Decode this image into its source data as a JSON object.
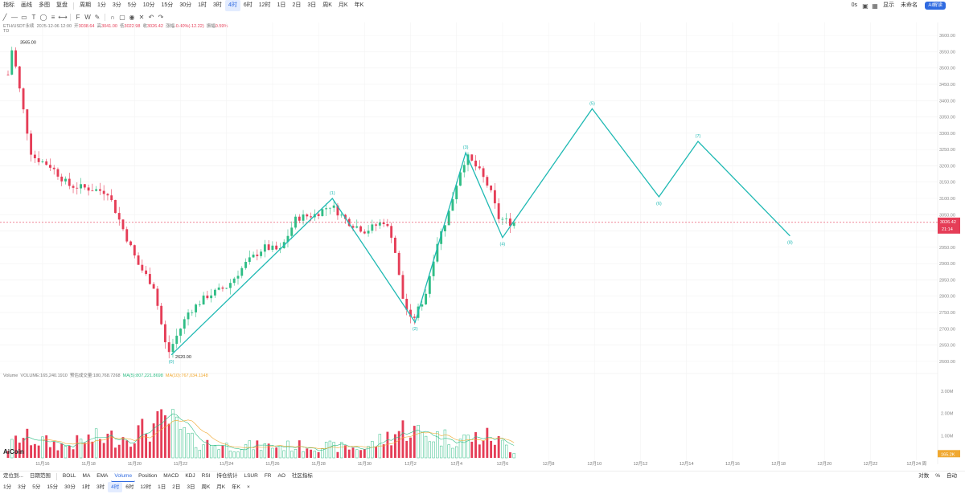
{
  "toolbar_top": {
    "left": [
      "指标",
      "画线",
      "多图",
      "复盘",
      "周期"
    ],
    "periods": [
      "1分",
      "3分",
      "5分",
      "10分",
      "15分",
      "30分",
      "1时",
      "3时",
      "4时",
      "6时",
      "12时",
      "1日",
      "2日",
      "3日",
      "周K",
      "月K",
      "年K"
    ],
    "active_period": "4时",
    "right": [
      "0s",
      "显示",
      "未命名"
    ],
    "ai_label": "AI解读"
  },
  "info_line": {
    "symbol": "ETH/USDT永续",
    "datetime": "2025-12-06 12:00",
    "open_label": "开",
    "open": "3038.64",
    "high_label": "高",
    "high": "3041.00",
    "low_label": "低",
    "low": "3022.98",
    "close_label": "收",
    "close": "3026.42",
    "change_label": "涨幅",
    "change": "-0.40%(-12.22)",
    "amp_label": "振幅",
    "amp": "0.59%",
    "tag": "TD"
  },
  "volume_info": {
    "label": "Volume",
    "volume": "VOLUME:165,240.1910",
    "est": "预估成交量:180,768.7268",
    "ma5": "MA(5):807,221.8698",
    "ma10": "MA(10):767,034.1148"
  },
  "bottom_tabs": {
    "left": [
      "定位到...",
      "日期范围"
    ],
    "indicators": [
      "BOLL",
      "MA",
      "EMA",
      "Volume",
      "Position",
      "MACD",
      "KDJ",
      "RSI",
      "持仓统计",
      "LSUR",
      "FR",
      "AO",
      "社区指标"
    ],
    "active": "Volume",
    "right": [
      "对数",
      "%",
      "自动"
    ]
  },
  "bottom_periods": [
    "1分",
    "3分",
    "5分",
    "15分",
    "30分",
    "1时",
    "3时",
    "4时",
    "6时",
    "12时",
    "1日",
    "2日",
    "3日",
    "周K",
    "月K",
    "年K"
  ],
  "logo": "AiCoin",
  "colors": {
    "up": "#2fbd85",
    "down": "#e53d57",
    "wave": "#1fb9b3",
    "ma5": "#2fbd85",
    "ma10": "#f0a830",
    "price_line": "#e53d57"
  },
  "chart_data": {
    "type": "candlestick",
    "y_ticks": [
      3600,
      3550,
      3500,
      3450,
      3400,
      3350,
      3300,
      3250,
      3200,
      3150,
      3100,
      3050,
      3000,
      2950,
      2900,
      2850,
      2800,
      2750,
      2700,
      2650,
      2600
    ],
    "y_tick_labels": [
      "3600.00",
      "3550.00",
      "3500.00",
      "3450.00",
      "3400.00",
      "3350.00",
      "3300.00",
      "3250.00",
      "3200.00",
      "3150.00",
      "3100.00",
      "3050.00",
      "3000.00",
      "2950.00",
      "2900.00",
      "2850.00",
      "2800.00",
      "2750.00",
      "2700.00",
      "2650.00",
      "2600.00"
    ],
    "ylim": [
      2580,
      3620
    ],
    "x_labels": [
      "11月16",
      "11月18",
      "11月20",
      "11月22",
      "11月24",
      "11月26",
      "11月28",
      "11月30",
      "12月2",
      "12月4",
      "12月6",
      "12月8",
      "12月10",
      "12月12",
      "12月14",
      "12月16",
      "12月18",
      "12月20",
      "12月22",
      "12月24 周"
    ],
    "x_label_dates": [
      16,
      18,
      20,
      22,
      24,
      26,
      28,
      30,
      32,
      34,
      36,
      38,
      40,
      42,
      44,
      46,
      48,
      50,
      52,
      54
    ],
    "date_start": 14.5,
    "bars_per_day": 6,
    "anchors": [
      {
        "date": 14.7,
        "price": 3480
      },
      {
        "date": 14.85,
        "price": 3565
      },
      {
        "date": 15.2,
        "price": 3420
      },
      {
        "date": 15.7,
        "price": 3230
      },
      {
        "date": 16.5,
        "price": 3200
      },
      {
        "date": 17.3,
        "price": 3140
      },
      {
        "date": 18.2,
        "price": 3130
      },
      {
        "date": 19.0,
        "price": 3120
      },
      {
        "date": 19.7,
        "price": 3000
      },
      {
        "date": 20.3,
        "price": 2900
      },
      {
        "date": 21.0,
        "price": 2830
      },
      {
        "date": 21.6,
        "price": 2620
      },
      {
        "date": 22.5,
        "price": 2750
      },
      {
        "date": 23.3,
        "price": 2800
      },
      {
        "date": 24.2,
        "price": 2830
      },
      {
        "date": 25.0,
        "price": 2900
      },
      {
        "date": 25.8,
        "price": 2950
      },
      {
        "date": 26.5,
        "price": 2940
      },
      {
        "date": 27.2,
        "price": 3040
      },
      {
        "date": 28.0,
        "price": 3050
      },
      {
        "date": 28.7,
        "price": 3080
      },
      {
        "date": 29.4,
        "price": 3030
      },
      {
        "date": 30.2,
        "price": 3000
      },
      {
        "date": 31.0,
        "price": 3030
      },
      {
        "date": 31.4,
        "price": 2980
      },
      {
        "date": 31.8,
        "price": 2800
      },
      {
        "date": 32.2,
        "price": 2720
      },
      {
        "date": 32.8,
        "price": 2800
      },
      {
        "date": 33.3,
        "price": 2960
      },
      {
        "date": 33.8,
        "price": 3050
      },
      {
        "date": 34.3,
        "price": 3180
      },
      {
        "date": 34.6,
        "price": 3230
      },
      {
        "date": 35.1,
        "price": 3190
      },
      {
        "date": 35.6,
        "price": 3130
      },
      {
        "date": 36.0,
        "price": 3040
      },
      {
        "date": 36.5,
        "price": 3026
      }
    ],
    "price_annotations": [
      {
        "label": "3565.00",
        "date": 14.85,
        "price": 3565
      },
      {
        "label": "2620.00",
        "date": 21.6,
        "price": 2620
      }
    ],
    "last_price": {
      "value": 3026.42,
      "label": "3026.42",
      "countdown": "21:14"
    },
    "wave": {
      "points": [
        {
          "label": "(0)",
          "date": 21.6,
          "price": 2620
        },
        {
          "label": "(1)",
          "date": 28.6,
          "price": 3100
        },
        {
          "label": "(2)",
          "date": 32.2,
          "price": 2720
        },
        {
          "label": "(3)",
          "date": 34.4,
          "price": 3240
        },
        {
          "label": "(4)",
          "date": 36.0,
          "price": 2980
        },
        {
          "label": "(5)",
          "date": 39.9,
          "price": 3375
        },
        {
          "label": "(6)",
          "date": 42.8,
          "price": 3105
        },
        {
          "label": "(7)",
          "date": 44.5,
          "price": 3275
        },
        {
          "label": "(8)",
          "date": 48.5,
          "price": 2985
        }
      ]
    },
    "volume": {
      "y_ticks": [
        3,
        2,
        1
      ],
      "y_tick_labels": [
        "3.00M",
        "2.00M",
        "1.00M"
      ],
      "ylim": [
        0,
        3.5
      ],
      "current_label": "165.2K",
      "anchors": [
        {
          "date": 14.5,
          "value": 0.4
        },
        {
          "date": 15.0,
          "value": 0.9
        },
        {
          "date": 16.0,
          "value": 0.7
        },
        {
          "date": 17.0,
          "value": 0.5
        },
        {
          "date": 18.0,
          "value": 0.8
        },
        {
          "date": 19.5,
          "value": 0.9
        },
        {
          "date": 20.5,
          "value": 1.2
        },
        {
          "date": 21.5,
          "value": 1.6
        },
        {
          "date": 22.5,
          "value": 0.7
        },
        {
          "date": 24.0,
          "value": 0.5
        },
        {
          "date": 26.0,
          "value": 0.5
        },
        {
          "date": 28.0,
          "value": 0.5
        },
        {
          "date": 30.0,
          "value": 0.4
        },
        {
          "date": 31.8,
          "value": 1.3
        },
        {
          "date": 32.5,
          "value": 1.0
        },
        {
          "date": 34.0,
          "value": 0.8
        },
        {
          "date": 35.5,
          "value": 0.9
        },
        {
          "date": 36.5,
          "value": 0.3
        }
      ]
    }
  }
}
